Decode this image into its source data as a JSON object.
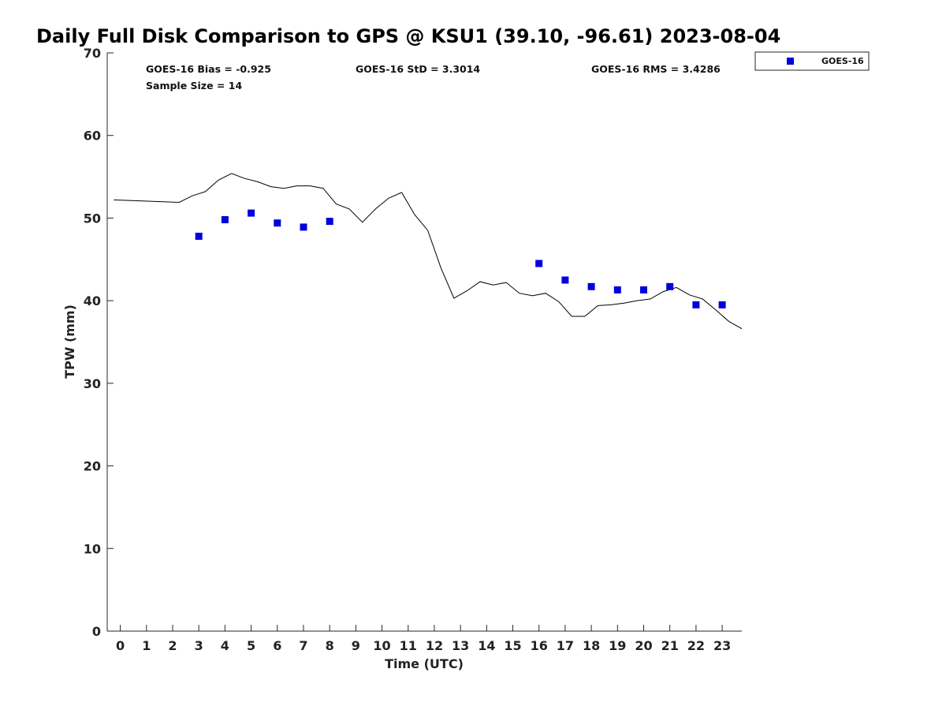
{
  "chart_data": {
    "type": "scatter",
    "title": "Daily Full Disk Comparison to GPS @ KSU1 (39.10, -96.61) 2023-08-04",
    "xlabel": "Time (UTC)",
    "ylabel": "TPW (mm)",
    "xlim": [
      -0.5,
      23.75
    ],
    "ylim": [
      0,
      70
    ],
    "xticks": [
      0,
      1,
      2,
      3,
      4,
      5,
      6,
      7,
      8,
      9,
      10,
      11,
      12,
      13,
      14,
      15,
      16,
      17,
      18,
      19,
      20,
      21,
      22,
      23
    ],
    "yticks": [
      0,
      10,
      20,
      30,
      40,
      50,
      60,
      70
    ],
    "grid": false,
    "legend_position": "top-right (outside plot)",
    "stats": [
      "GOES-16 Bias = -0.925",
      "GOES-16 StD = 3.3014",
      "GOES-16 RMS = 3.4286",
      "Sample Size = 14"
    ],
    "series": [
      {
        "name": "GOES-16",
        "kind": "scatter",
        "marker": "square",
        "color": "#0000dd",
        "x": [
          3,
          4,
          5,
          6,
          7,
          8,
          16,
          17,
          18,
          19,
          20,
          21,
          22,
          23
        ],
        "y": [
          47.8,
          49.8,
          50.6,
          49.4,
          48.9,
          49.6,
          44.5,
          42.5,
          41.7,
          41.3,
          41.3,
          41.7,
          39.5,
          39.5
        ]
      },
      {
        "kind": "line",
        "color": "#000000",
        "x": [
          -0.25,
          2.25,
          2.75,
          3.25,
          3.75,
          4.25,
          4.75,
          5.25,
          5.75,
          6.25,
          6.75,
          7.25,
          7.75,
          8.25,
          8.75,
          9.25,
          9.75,
          10.25,
          10.75,
          11.25,
          11.75,
          12.25,
          12.75,
          13.25,
          13.75,
          14.25,
          14.75,
          15.25,
          15.75,
          16.25,
          16.75,
          17.25,
          17.75,
          18.25,
          18.75,
          19.25,
          19.75,
          20.25,
          20.75,
          21.25,
          21.75,
          22.25,
          22.75,
          23.25,
          23.75
        ],
        "y": [
          52.2,
          51.9,
          52.7,
          53.2,
          54.6,
          55.4,
          54.8,
          54.4,
          53.8,
          53.6,
          53.9,
          53.9,
          53.6,
          51.7,
          51.1,
          49.5,
          51.1,
          52.4,
          53.1,
          50.4,
          48.5,
          44.0,
          40.3,
          41.2,
          42.3,
          41.9,
          42.2,
          40.9,
          40.6,
          40.9,
          39.9,
          38.1,
          38.1,
          39.4,
          39.5,
          39.7,
          40.0,
          40.2,
          41.1,
          41.6,
          40.7,
          40.2,
          38.9,
          37.5,
          36.6
        ]
      }
    ]
  },
  "colors": {
    "marker": "#0000dd",
    "line": "#000000",
    "axis": "#262626"
  }
}
